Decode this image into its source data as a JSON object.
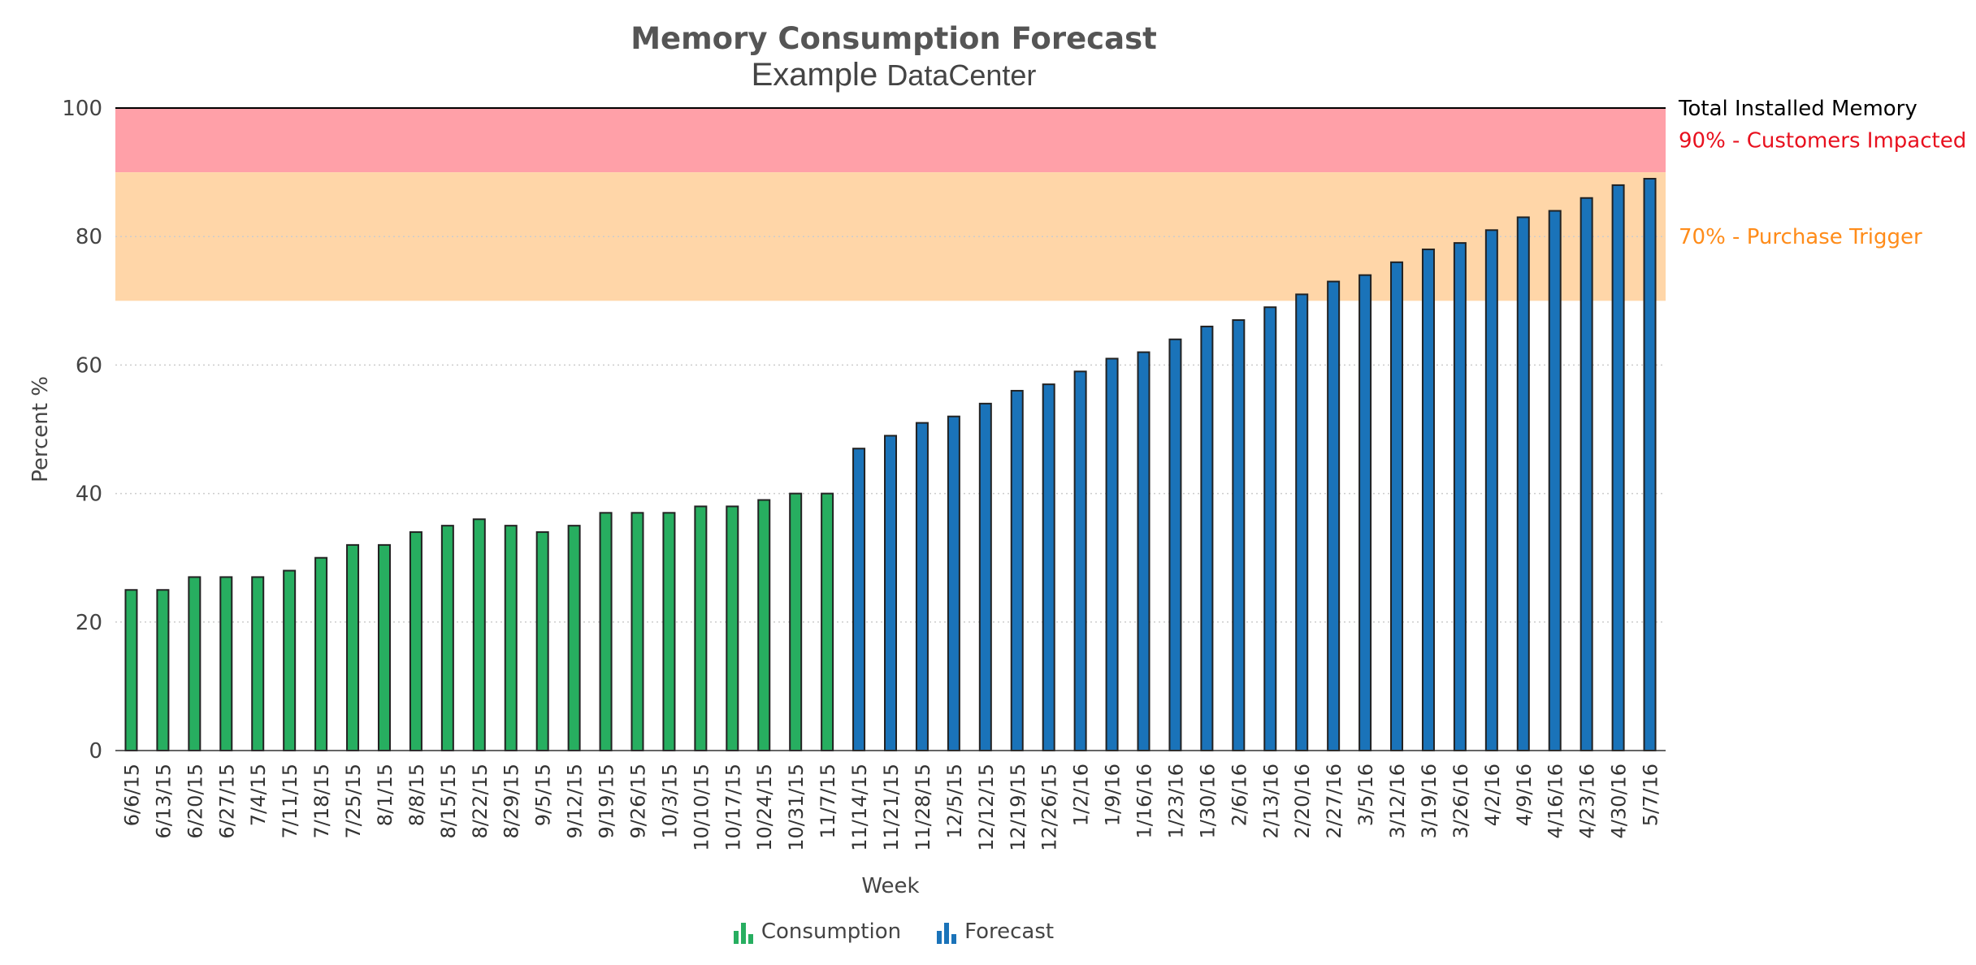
{
  "chart_data": {
    "type": "bar",
    "title": "Memory Consumption Forecast",
    "subtitle": {
      "prefix": "Example",
      "suffix": "DataCenter"
    },
    "xlabel": "Week",
    "ylabel": "Percent %",
    "ylim": [
      0,
      100
    ],
    "yticks": [
      0,
      20,
      40,
      60,
      80,
      100
    ],
    "grid": true,
    "legend_position": "bottom-center",
    "categories": [
      "6/6/15",
      "6/13/15",
      "6/20/15",
      "6/27/15",
      "7/4/15",
      "7/11/15",
      "7/18/15",
      "7/25/15",
      "8/1/15",
      "8/8/15",
      "8/15/15",
      "8/22/15",
      "8/29/15",
      "9/5/15",
      "9/12/15",
      "9/19/15",
      "9/26/15",
      "10/3/15",
      "10/10/15",
      "10/17/15",
      "10/24/15",
      "10/31/15",
      "11/7/15",
      "11/14/15",
      "11/21/15",
      "11/28/15",
      "12/5/15",
      "12/12/15",
      "12/19/15",
      "12/26/15",
      "1/2/16",
      "1/9/16",
      "1/16/16",
      "1/23/16",
      "1/30/16",
      "2/6/16",
      "2/13/16",
      "2/20/16",
      "2/27/16",
      "3/5/16",
      "3/12/16",
      "3/19/16",
      "3/26/16",
      "4/2/16",
      "4/9/16",
      "4/16/16",
      "4/23/16",
      "4/30/16",
      "5/7/16"
    ],
    "series": [
      {
        "name": "Consumption",
        "color": "#27ae60",
        "values": [
          25,
          25,
          27,
          27,
          27,
          28,
          30,
          32,
          32,
          34,
          35,
          36,
          35,
          34,
          35,
          37,
          37,
          37,
          38,
          38,
          39,
          40,
          40,
          null,
          null,
          null,
          null,
          null,
          null,
          null,
          null,
          null,
          null,
          null,
          null,
          null,
          null,
          null,
          null,
          null,
          null,
          null,
          null,
          null,
          null,
          null,
          null,
          null,
          null
        ]
      },
      {
        "name": "Forecast",
        "color": "#1a73b9",
        "values": [
          null,
          null,
          null,
          null,
          null,
          null,
          null,
          null,
          null,
          null,
          null,
          null,
          null,
          null,
          null,
          null,
          null,
          null,
          null,
          null,
          null,
          null,
          null,
          47,
          49,
          51,
          52,
          54,
          56,
          57,
          59,
          61,
          62,
          64,
          66,
          67,
          69,
          71,
          73,
          74,
          76,
          78,
          79,
          81,
          83,
          84,
          86,
          88,
          89
        ]
      }
    ],
    "bands": [
      {
        "from": 90,
        "to": 100,
        "color": "#ffa0a8"
      },
      {
        "from": 70,
        "to": 90,
        "color": "#ffd6a8"
      }
    ],
    "reference_lines": [
      {
        "label": "Total Installed Memory",
        "value": 100,
        "color": "#000000"
      },
      {
        "label": "90% - Customers Impacted",
        "value": 95,
        "color": "#e8101e"
      },
      {
        "label": "70% - Purchase Trigger",
        "value": 80,
        "color": "#ff8c1a"
      }
    ]
  }
}
